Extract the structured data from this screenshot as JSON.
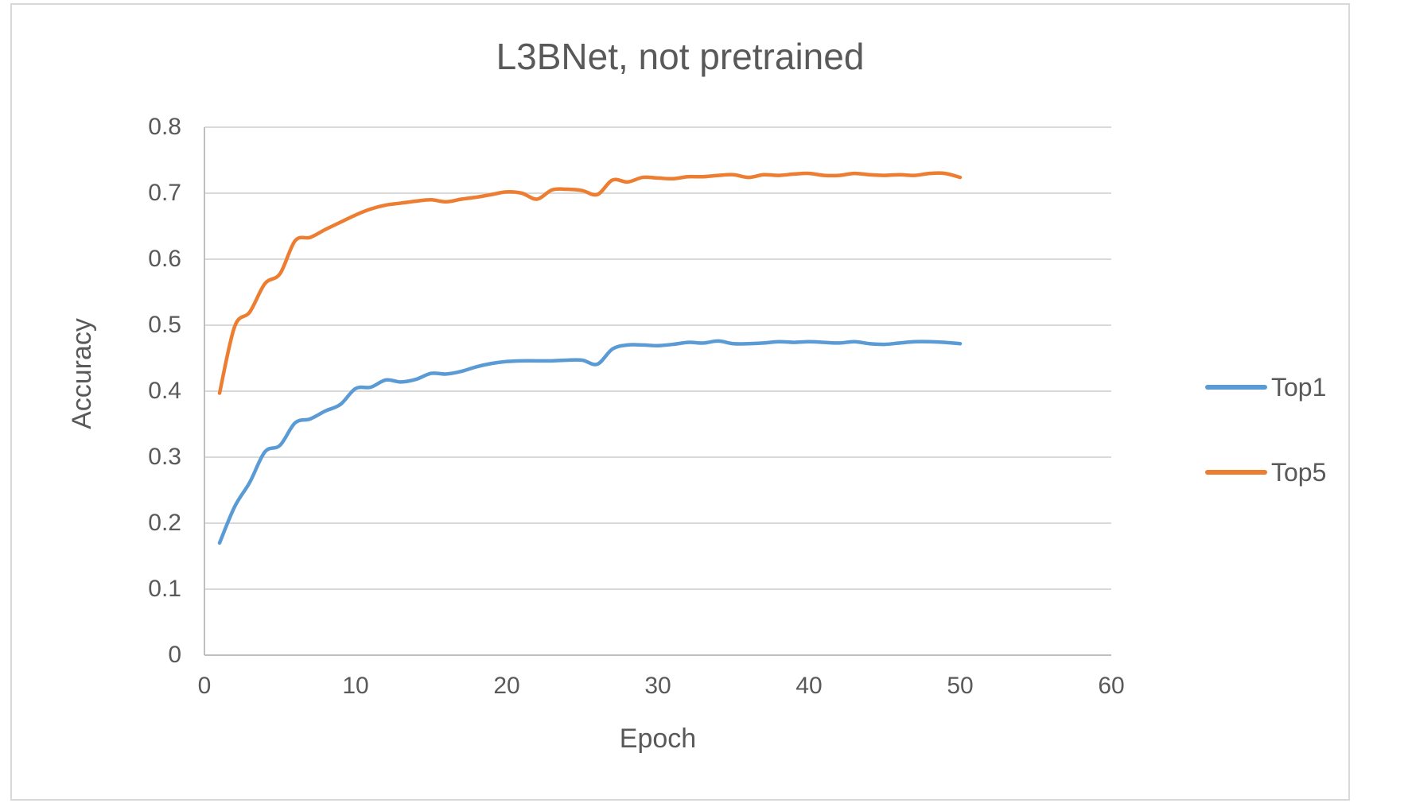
{
  "chart_title": "L3BNet, not pretrained",
  "colors": {
    "top1_line": "#5b9bd5",
    "top5_line": "#ed7d31",
    "gridline": "#d9d9d9",
    "axis_line": "#bfbfbf",
    "text": "#595959",
    "frame_border": "#d9d9d9",
    "background": "#ffffff"
  },
  "legend": {
    "position": "right",
    "entries": [
      {
        "label": "Top1",
        "color": "#5b9bd5"
      },
      {
        "label": "Top5",
        "color": "#ed7d31"
      }
    ]
  },
  "chart_data": {
    "type": "line",
    "title": "L3BNet, not pretrained",
    "xlabel": "Epoch",
    "ylabel": "Accuracy",
    "xlim": [
      0,
      60
    ],
    "ylim": [
      0,
      0.8
    ],
    "x_tick_labels": [
      "0",
      "10",
      "20",
      "30",
      "40",
      "50",
      "60"
    ],
    "x_tick_values": [
      0,
      10,
      20,
      30,
      40,
      50,
      60
    ],
    "y_tick_labels": [
      "0",
      "0.1",
      "0.2",
      "0.3",
      "0.4",
      "0.5",
      "0.6",
      "0.7",
      "0.8"
    ],
    "y_tick_values": [
      0,
      0.1,
      0.2,
      0.3,
      0.4,
      0.5,
      0.6,
      0.7,
      0.8
    ],
    "grid": "horizontal",
    "smooth_lines": true,
    "legend_position": "right",
    "x": [
      1,
      2,
      3,
      4,
      5,
      6,
      7,
      8,
      9,
      10,
      11,
      12,
      13,
      14,
      15,
      16,
      17,
      18,
      19,
      20,
      21,
      22,
      23,
      24,
      25,
      26,
      27,
      28,
      29,
      30,
      31,
      32,
      33,
      34,
      35,
      36,
      37,
      38,
      39,
      40,
      41,
      42,
      43,
      44,
      45,
      46,
      47,
      48,
      49,
      50
    ],
    "series": [
      {
        "name": "Top1",
        "color": "#5b9bd5",
        "values": [
          0.17,
          0.225,
          0.262,
          0.308,
          0.318,
          0.352,
          0.358,
          0.37,
          0.38,
          0.404,
          0.406,
          0.417,
          0.414,
          0.418,
          0.427,
          0.426,
          0.43,
          0.437,
          0.442,
          0.445,
          0.446,
          0.446,
          0.446,
          0.447,
          0.447,
          0.441,
          0.464,
          0.47,
          0.47,
          0.469,
          0.471,
          0.474,
          0.473,
          0.476,
          0.472,
          0.472,
          0.473,
          0.475,
          0.474,
          0.475,
          0.474,
          0.473,
          0.475,
          0.472,
          0.471,
          0.473,
          0.475,
          0.475,
          0.474,
          0.472
        ]
      },
      {
        "name": "Top5",
        "color": "#ed7d31",
        "values": [
          0.397,
          0.498,
          0.52,
          0.563,
          0.578,
          0.628,
          0.633,
          0.645,
          0.656,
          0.667,
          0.676,
          0.682,
          0.685,
          0.688,
          0.69,
          0.687,
          0.691,
          0.694,
          0.698,
          0.702,
          0.7,
          0.691,
          0.705,
          0.706,
          0.704,
          0.698,
          0.72,
          0.717,
          0.724,
          0.723,
          0.722,
          0.725,
          0.725,
          0.727,
          0.728,
          0.724,
          0.728,
          0.727,
          0.729,
          0.73,
          0.727,
          0.727,
          0.73,
          0.728,
          0.727,
          0.728,
          0.727,
          0.73,
          0.73,
          0.724
        ]
      }
    ]
  }
}
